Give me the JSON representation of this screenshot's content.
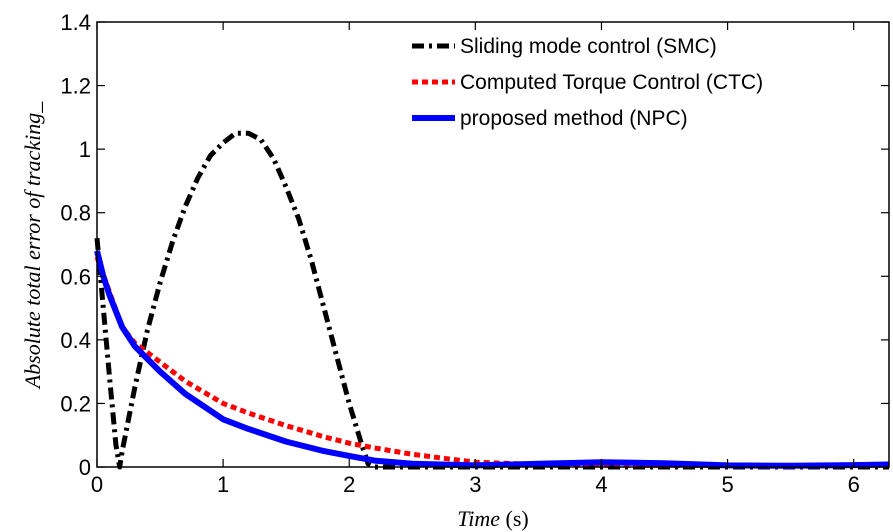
{
  "chart_data": {
    "type": "line",
    "title": "",
    "xlabel_main": "Time",
    "xlabel_unit": " (s)",
    "ylabel": "Absolute total error of tracking_",
    "xlim": [
      0,
      6.28
    ],
    "ylim": [
      0,
      1.4
    ],
    "xticks": [
      "0",
      "1",
      "2",
      "3",
      "4",
      "5",
      "6"
    ],
    "yticks": [
      "0",
      "0.2",
      "0.4",
      "0.6",
      "0.8",
      "1",
      "1.2",
      "1.4"
    ],
    "legend_position": "top-right",
    "grid": false,
    "series": [
      {
        "name": "Sliding mode control (SMC)",
        "color": "#000000",
        "style": "dash-dot",
        "x": [
          0,
          0.05,
          0.1,
          0.15,
          0.18,
          0.2,
          0.3,
          0.4,
          0.5,
          0.6,
          0.7,
          0.8,
          0.9,
          1.0,
          1.1,
          1.2,
          1.3,
          1.4,
          1.5,
          1.6,
          1.7,
          1.8,
          1.9,
          2.0,
          2.1,
          2.15,
          2.2,
          2.3,
          2.5,
          3.0,
          4.0,
          5.0,
          6.28
        ],
        "y": [
          0.72,
          0.5,
          0.28,
          0.07,
          0.0,
          0.05,
          0.25,
          0.43,
          0.58,
          0.71,
          0.82,
          0.91,
          0.98,
          1.02,
          1.05,
          1.05,
          1.03,
          0.97,
          0.88,
          0.78,
          0.65,
          0.5,
          0.35,
          0.2,
          0.07,
          0.01,
          0.0,
          0.0,
          0.0,
          0.0,
          0.0,
          0.0,
          0.0
        ]
      },
      {
        "name": "Computed Torque Control (CTC)",
        "color": "#ff0000",
        "style": "dotted",
        "x": [
          0,
          0.1,
          0.2,
          0.3,
          0.5,
          0.7,
          1.0,
          1.2,
          1.5,
          1.8,
          2.0,
          2.2,
          2.5,
          2.8,
          3.0,
          3.5,
          4.0,
          4.5,
          5.0,
          5.5,
          6.0,
          6.28
        ],
        "y": [
          0.66,
          0.55,
          0.44,
          0.39,
          0.33,
          0.27,
          0.2,
          0.17,
          0.13,
          0.095,
          0.075,
          0.06,
          0.04,
          0.025,
          0.015,
          0.008,
          0.006,
          0.005,
          0.005,
          0.005,
          0.006,
          0.008
        ]
      },
      {
        "name": "proposed method (NPC)",
        "color": "#0000ff",
        "style": "solid",
        "x": [
          0,
          0.05,
          0.1,
          0.2,
          0.3,
          0.5,
          0.7,
          1.0,
          1.2,
          1.5,
          1.8,
          2.0,
          2.2,
          2.5,
          3.0,
          3.5,
          4.0,
          4.5,
          5.0,
          5.5,
          6.0,
          6.28
        ],
        "y": [
          0.68,
          0.6,
          0.54,
          0.44,
          0.38,
          0.3,
          0.23,
          0.15,
          0.12,
          0.08,
          0.05,
          0.035,
          0.02,
          0.01,
          0.005,
          0.01,
          0.015,
          0.012,
          0.005,
          0.004,
          0.006,
          0.008
        ]
      }
    ]
  }
}
